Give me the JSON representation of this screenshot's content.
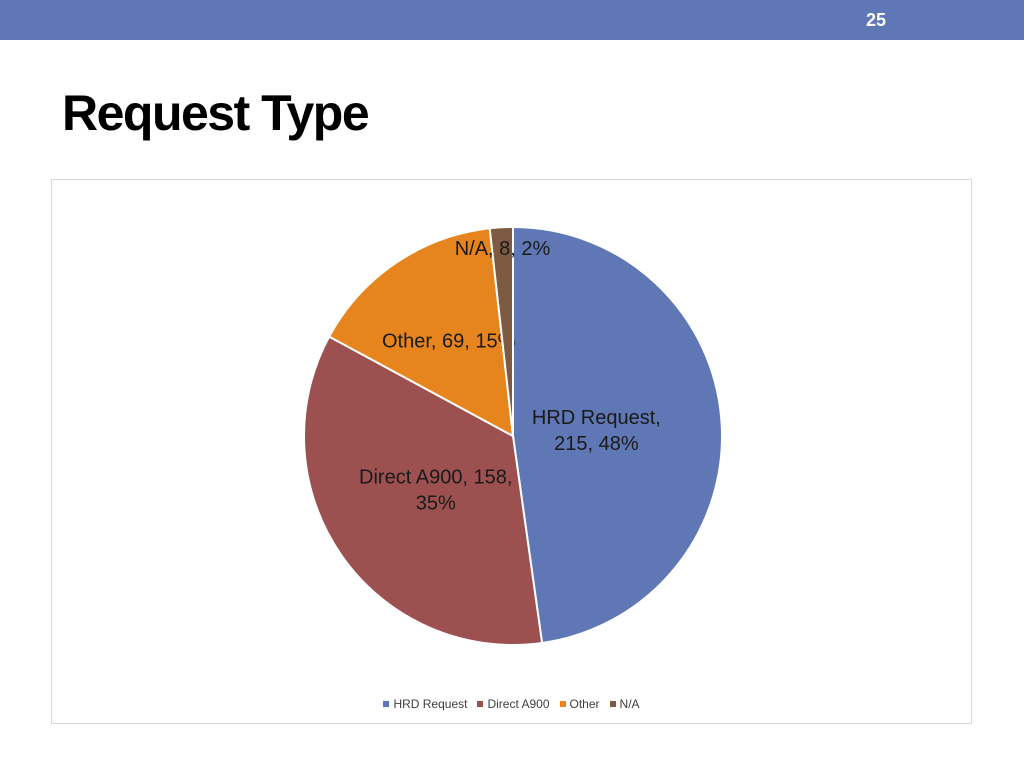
{
  "slide": {
    "number": "25",
    "title": "Request Type",
    "accent_color": "#5F78B5"
  },
  "chart_data": {
    "type": "pie",
    "title": "",
    "slices": [
      {
        "label": "HRD Request",
        "value": 215,
        "percent": 48,
        "color": "#5F78B5",
        "data_label": "HRD Request, 215, 48%"
      },
      {
        "label": "Direct A900",
        "value": 158,
        "percent": 35,
        "color": "#9C5150",
        "data_label": "Direct A900, 158, 35%"
      },
      {
        "label": "Other",
        "value": 69,
        "percent": 15,
        "color": "#E6841E",
        "data_label": "Other, 69, 15%"
      },
      {
        "label": "N/A",
        "value": 8,
        "percent": 2,
        "color": "#7D5B43",
        "data_label": "N/A, 8, 2%"
      }
    ],
    "legend_position": "bottom"
  }
}
